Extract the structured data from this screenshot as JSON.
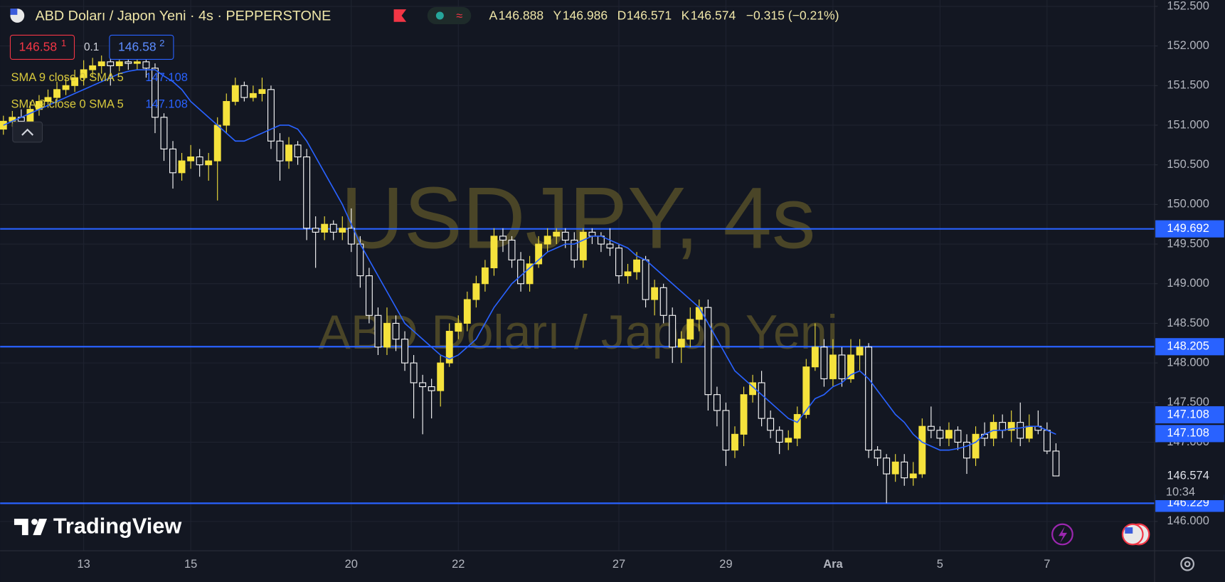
{
  "chart_data": {
    "type": "candlestick",
    "symbol_title": "ABD Doları / Japon Yeni · 4s · PEPPERSTONE",
    "ohlc_header": [
      {
        "label": "A",
        "value": 146.888
      },
      {
        "label": "Y",
        "value": 146.986
      },
      {
        "label": "D",
        "value": 146.571
      },
      {
        "label": "K",
        "value": 146.574
      }
    ],
    "change": "−0.315 (−0.21%)",
    "sell": {
      "price": "146.58",
      "pip": "1"
    },
    "spread": "0.1",
    "buy": {
      "price": "146.58",
      "pip": "2"
    },
    "watermark_symbol": "USDJPY, 4s",
    "watermark_name": "ABD Doları / Japon Yeni",
    "logo": "TradingView",
    "countdown": "10:34",
    "last_price": 146.574,
    "up_color": "#f5e23c",
    "down_color": "#ffffff",
    "ylim": [
      145.63,
      152.58
    ],
    "yticks": [
      {
        "value": 152.5,
        "label": "152.500"
      },
      {
        "value": 152,
        "label": "152.000"
      },
      {
        "value": 151.5,
        "label": "151.500"
      },
      {
        "value": 151,
        "label": "151.000"
      },
      {
        "value": 150.5,
        "label": "150.500"
      },
      {
        "value": 150,
        "label": "150.000"
      },
      {
        "value": 149.5,
        "label": "149.500"
      },
      {
        "value": 149,
        "label": "149.000"
      },
      {
        "value": 148.5,
        "label": "148.500"
      },
      {
        "value": 148,
        "label": "148.000"
      },
      {
        "value": 147.5,
        "label": "147.500"
      },
      {
        "value": 147,
        "label": "147.000"
      },
      {
        "value": 146,
        "label": "146.000"
      }
    ],
    "grid": true,
    "levels": [
      149.692,
      148.205,
      146.229
    ],
    "level_color": "#2962ff",
    "categories": [
      null,
      null,
      null,
      null,
      null,
      null,
      null,
      null,
      null,
      "13",
      null,
      null,
      null,
      null,
      null,
      null,
      null,
      null,
      null,
      null,
      null,
      "15",
      null,
      null,
      null,
      null,
      null,
      null,
      null,
      null,
      null,
      null,
      null,
      null,
      null,
      null,
      null,
      null,
      null,
      "20",
      null,
      null,
      null,
      null,
      null,
      null,
      null,
      null,
      null,
      null,
      null,
      "22",
      null,
      null,
      null,
      null,
      null,
      null,
      null,
      null,
      null,
      null,
      null,
      null,
      null,
      null,
      null,
      null,
      null,
      "27",
      null,
      null,
      null,
      null,
      null,
      null,
      null,
      null,
      null,
      null,
      null,
      "29",
      null,
      null,
      null,
      null,
      null,
      null,
      null,
      null,
      null,
      null,
      null,
      "Ara",
      null,
      null,
      null,
      null,
      null,
      null,
      null,
      null,
      null,
      null,
      null,
      "5",
      null,
      null,
      null,
      null,
      null,
      null,
      null,
      null,
      null,
      null,
      null,
      "7",
      null
    ],
    "open": [
      150.95,
      151.05,
      151.1,
      151.05,
      151.2,
      151.3,
      151.35,
      151.45,
      151.5,
      151.6,
      151.7,
      151.75,
      151.8,
      151.75,
      151.8,
      151.78,
      151.8,
      151.72,
      151.1,
      150.7,
      150.4,
      150.55,
      150.6,
      150.5,
      150.55,
      151.0,
      151.3,
      151.5,
      151.35,
      151.4,
      151.45,
      150.8,
      150.55,
      150.75,
      150.6,
      149.7,
      149.65,
      149.75,
      149.65,
      149.7,
      149.5,
      149.1,
      148.6,
      148.2,
      148.5,
      148.3,
      148.0,
      147.75,
      147.7,
      147.65,
      148.0,
      148.4,
      148.5,
      148.8,
      149.0,
      149.2,
      149.6,
      149.55,
      149.3,
      149.0,
      149.25,
      149.5,
      149.6,
      149.65,
      149.55,
      149.3,
      149.65,
      149.6,
      149.5,
      149.45,
      149.1,
      149.15,
      149.3,
      148.8,
      148.95,
      148.6,
      148.2,
      148.3,
      148.55,
      148.7,
      147.6,
      147.4,
      146.9,
      147.1,
      147.6,
      147.75,
      147.3,
      147.15,
      147.0,
      147.05,
      147.35,
      147.95,
      148.2,
      147.8,
      148.1,
      147.8,
      148.1,
      148.2,
      146.9,
      146.8,
      146.6,
      146.75,
      146.55,
      146.6,
      147.2,
      147.15,
      147.05,
      147.15,
      147.0,
      146.8,
      147.1,
      147.05,
      147.25,
      147.15,
      147.25,
      147.05,
      147.2,
      147.15,
      146.888
    ],
    "high": [
      151.12,
      151.18,
      151.2,
      151.3,
      151.38,
      151.45,
      151.55,
      151.6,
      151.7,
      151.82,
      151.85,
      151.88,
      151.86,
      151.87,
      151.86,
      151.85,
      151.85,
      151.78,
      151.15,
      150.8,
      150.65,
      150.75,
      150.7,
      150.65,
      151.1,
      151.4,
      151.6,
      151.55,
      151.5,
      151.6,
      151.5,
      150.9,
      150.85,
      150.8,
      150.7,
      149.85,
      149.85,
      149.8,
      149.85,
      149.95,
      149.6,
      149.2,
      148.7,
      148.7,
      148.6,
      148.4,
      148.1,
      147.85,
      147.8,
      148.1,
      148.5,
      148.6,
      148.9,
      149.1,
      149.3,
      149.7,
      149.7,
      149.6,
      149.4,
      149.35,
      149.6,
      149.7,
      149.7,
      149.7,
      149.65,
      149.7,
      149.7,
      149.65,
      149.7,
      149.5,
      149.25,
      149.4,
      149.35,
      149.05,
      149.0,
      148.7,
      148.4,
      148.7,
      148.8,
      148.8,
      147.7,
      147.5,
      147.2,
      147.7,
      147.85,
      147.9,
      147.4,
      147.2,
      147.15,
      147.45,
      148.05,
      148.5,
      148.3,
      148.3,
      148.2,
      148.3,
      148.3,
      148.25,
      146.95,
      146.85,
      146.85,
      146.85,
      146.75,
      147.3,
      147.45,
      147.2,
      147.25,
      147.2,
      147.1,
      147.2,
      147.25,
      147.35,
      147.35,
      147.4,
      147.5,
      147.35,
      147.4,
      147.25,
      146.986
    ],
    "low": [
      150.88,
      150.98,
      150.97,
      151.0,
      151.12,
      151.22,
      151.28,
      151.38,
      151.42,
      151.5,
      151.6,
      151.65,
      151.5,
      151.68,
      151.7,
      151.7,
      151.6,
      150.9,
      150.55,
      150.2,
      150.3,
      150.45,
      150.35,
      150.3,
      150.05,
      150.9,
      151.25,
      151.3,
      151.3,
      151.3,
      150.7,
      150.3,
      150.45,
      150.5,
      149.55,
      149.2,
      149.55,
      149.55,
      149.55,
      149.4,
      148.95,
      148.5,
      148.1,
      148.1,
      148.15,
      147.9,
      147.3,
      147.1,
      147.3,
      147.45,
      147.95,
      148.3,
      148.4,
      148.7,
      148.9,
      149.1,
      149.4,
      149.2,
      148.9,
      148.9,
      149.2,
      149.4,
      149.5,
      149.45,
      149.2,
      149.2,
      149.5,
      149.4,
      149.35,
      149.0,
      149.0,
      149.05,
      148.7,
      148.6,
      148.5,
      148.0,
      148.0,
      148.2,
      148.4,
      147.4,
      147.2,
      146.7,
      146.8,
      146.95,
      147.5,
      147.2,
      147.05,
      146.85,
      146.9,
      146.95,
      147.3,
      147.9,
      147.7,
      147.7,
      147.7,
      147.75,
      147.9,
      146.8,
      146.7,
      146.23,
      146.5,
      146.45,
      146.45,
      146.55,
      147.05,
      146.95,
      146.95,
      146.9,
      146.6,
      146.7,
      146.95,
      146.95,
      147.05,
      147.0,
      146.95,
      147.0,
      147.1,
      146.85,
      146.571
    ],
    "close": [
      151.05,
      151.1,
      151.05,
      151.2,
      151.3,
      151.35,
      151.45,
      151.5,
      151.6,
      151.7,
      151.75,
      151.8,
      151.75,
      151.8,
      151.78,
      151.8,
      151.72,
      151.1,
      150.7,
      150.4,
      150.55,
      150.6,
      150.5,
      150.55,
      151.0,
      151.3,
      151.5,
      151.35,
      151.4,
      151.45,
      150.8,
      150.55,
      150.75,
      150.6,
      149.7,
      149.65,
      149.75,
      149.65,
      149.7,
      149.5,
      149.1,
      148.6,
      148.2,
      148.5,
      148.3,
      148.0,
      147.75,
      147.7,
      147.65,
      148.0,
      148.4,
      148.5,
      148.8,
      149.0,
      149.2,
      149.6,
      149.55,
      149.3,
      149.0,
      149.25,
      149.5,
      149.6,
      149.65,
      149.55,
      149.3,
      149.65,
      149.6,
      149.5,
      149.45,
      149.1,
      149.15,
      149.3,
      148.8,
      148.95,
      148.6,
      148.2,
      148.3,
      148.55,
      148.7,
      147.6,
      147.4,
      146.9,
      147.1,
      147.6,
      147.75,
      147.3,
      147.15,
      147.0,
      147.05,
      147.35,
      147.95,
      148.2,
      147.8,
      148.1,
      147.8,
      148.1,
      148.2,
      146.9,
      146.8,
      146.6,
      146.75,
      146.55,
      146.6,
      147.2,
      147.15,
      147.05,
      147.15,
      147.0,
      146.8,
      147.1,
      147.05,
      147.25,
      147.15,
      147.25,
      147.05,
      147.2,
      147.15,
      146.888,
      146.574
    ],
    "indicators": [
      {
        "name": "SMA 9 close 0 SMA 5",
        "value": 147.108,
        "color": "#2962ff",
        "text_color": "#d8c93c",
        "values": [
          151.0,
          151.05,
          151.1,
          151.15,
          151.2,
          151.25,
          151.3,
          151.35,
          151.4,
          151.45,
          151.5,
          151.55,
          151.6,
          151.65,
          151.68,
          151.7,
          151.7,
          151.7,
          151.62,
          151.55,
          151.45,
          151.3,
          151.2,
          151.1,
          151.0,
          150.9,
          150.8,
          150.8,
          150.85,
          150.9,
          150.95,
          151.0,
          151.0,
          150.95,
          150.8,
          150.6,
          150.4,
          150.2,
          150.0,
          149.75,
          149.5,
          149.3,
          149.1,
          148.9,
          148.7,
          148.5,
          148.4,
          148.3,
          148.2,
          148.1,
          148.05,
          148.1,
          148.2,
          148.3,
          148.5,
          148.7,
          148.85,
          149.0,
          149.1,
          149.2,
          149.3,
          149.4,
          149.45,
          149.5,
          149.5,
          149.55,
          149.6,
          149.6,
          149.55,
          149.5,
          149.45,
          149.35,
          149.3,
          149.2,
          149.1,
          149.0,
          148.9,
          148.8,
          148.7,
          148.5,
          148.3,
          148.1,
          147.9,
          147.8,
          147.7,
          147.6,
          147.5,
          147.4,
          147.3,
          147.25,
          147.4,
          147.55,
          147.6,
          147.7,
          147.75,
          147.85,
          147.9,
          147.8,
          147.65,
          147.5,
          147.35,
          147.25,
          147.1,
          147.0,
          146.95,
          146.9,
          146.9,
          146.92,
          146.95,
          147.0,
          147.1,
          147.15,
          147.15,
          147.17,
          147.18,
          147.2,
          147.2,
          147.15,
          147.1
        ]
      },
      {
        "name": "SMA 9 close 0 SMA 5",
        "value": 147.108,
        "color": "#2962ff",
        "text_color": "#d8c93c"
      }
    ]
  }
}
